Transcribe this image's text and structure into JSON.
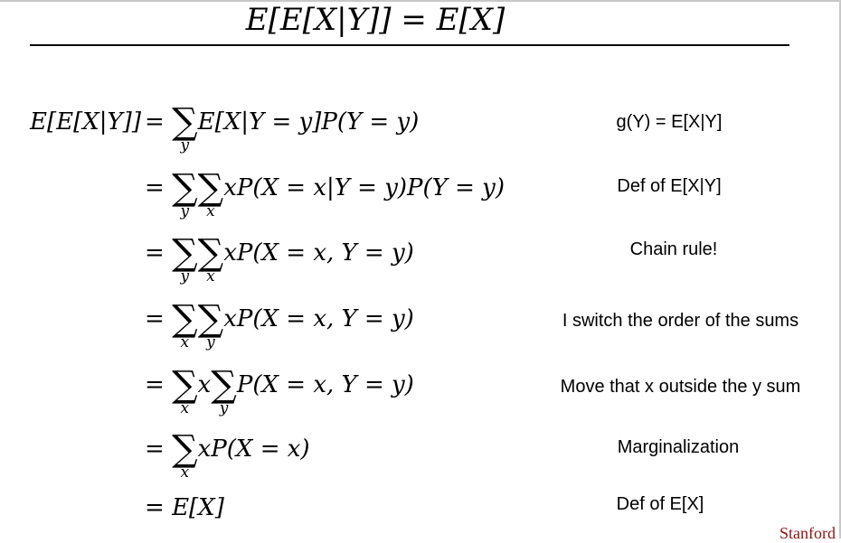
{
  "title": "E[E[X|Y]] = E[X]",
  "derivation": {
    "lhs": "E[E[X|Y]]",
    "steps": [
      {
        "eq_pre": "=",
        "sums": [
          "y"
        ],
        "eq_body": "E[X|Y = y]P(Y = y)",
        "note": "g(Y) = E[X|Y]"
      },
      {
        "eq_pre": "=",
        "sums": [
          "y",
          "x"
        ],
        "eq_body": "xP(X = x|Y = y)P(Y = y)",
        "note": "Def of E[X|Y]"
      },
      {
        "eq_pre": "=",
        "sums": [
          "y",
          "x"
        ],
        "eq_body": "xP(X = x, Y = y)",
        "note": "Chain rule!"
      },
      {
        "eq_pre": "=",
        "sums": [
          "x",
          "y"
        ],
        "eq_body": "xP(X = x, Y = y)",
        "note": "I switch the order of the sums"
      },
      {
        "eq_pre": "=",
        "sum1": "x",
        "mid": "x",
        "sum2": "y",
        "eq_body": "P(X = x, Y = y)",
        "note": "Move that x outside the y sum"
      },
      {
        "eq_pre": "=",
        "sums": [
          "x"
        ],
        "eq_body": "xP(X = x)",
        "note": "Marginalization"
      },
      {
        "eq_pre": "=",
        "eq_body": "E[X]",
        "note": "Def of E[X]"
      }
    ]
  },
  "footer": "Stanford"
}
